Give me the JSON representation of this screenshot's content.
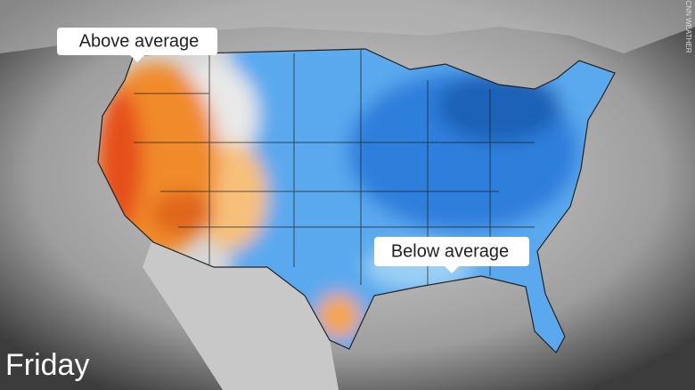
{
  "callouts": {
    "above": "Above average",
    "below": "Below average"
  },
  "day": "Friday",
  "credit": "CNN WEATHER"
}
